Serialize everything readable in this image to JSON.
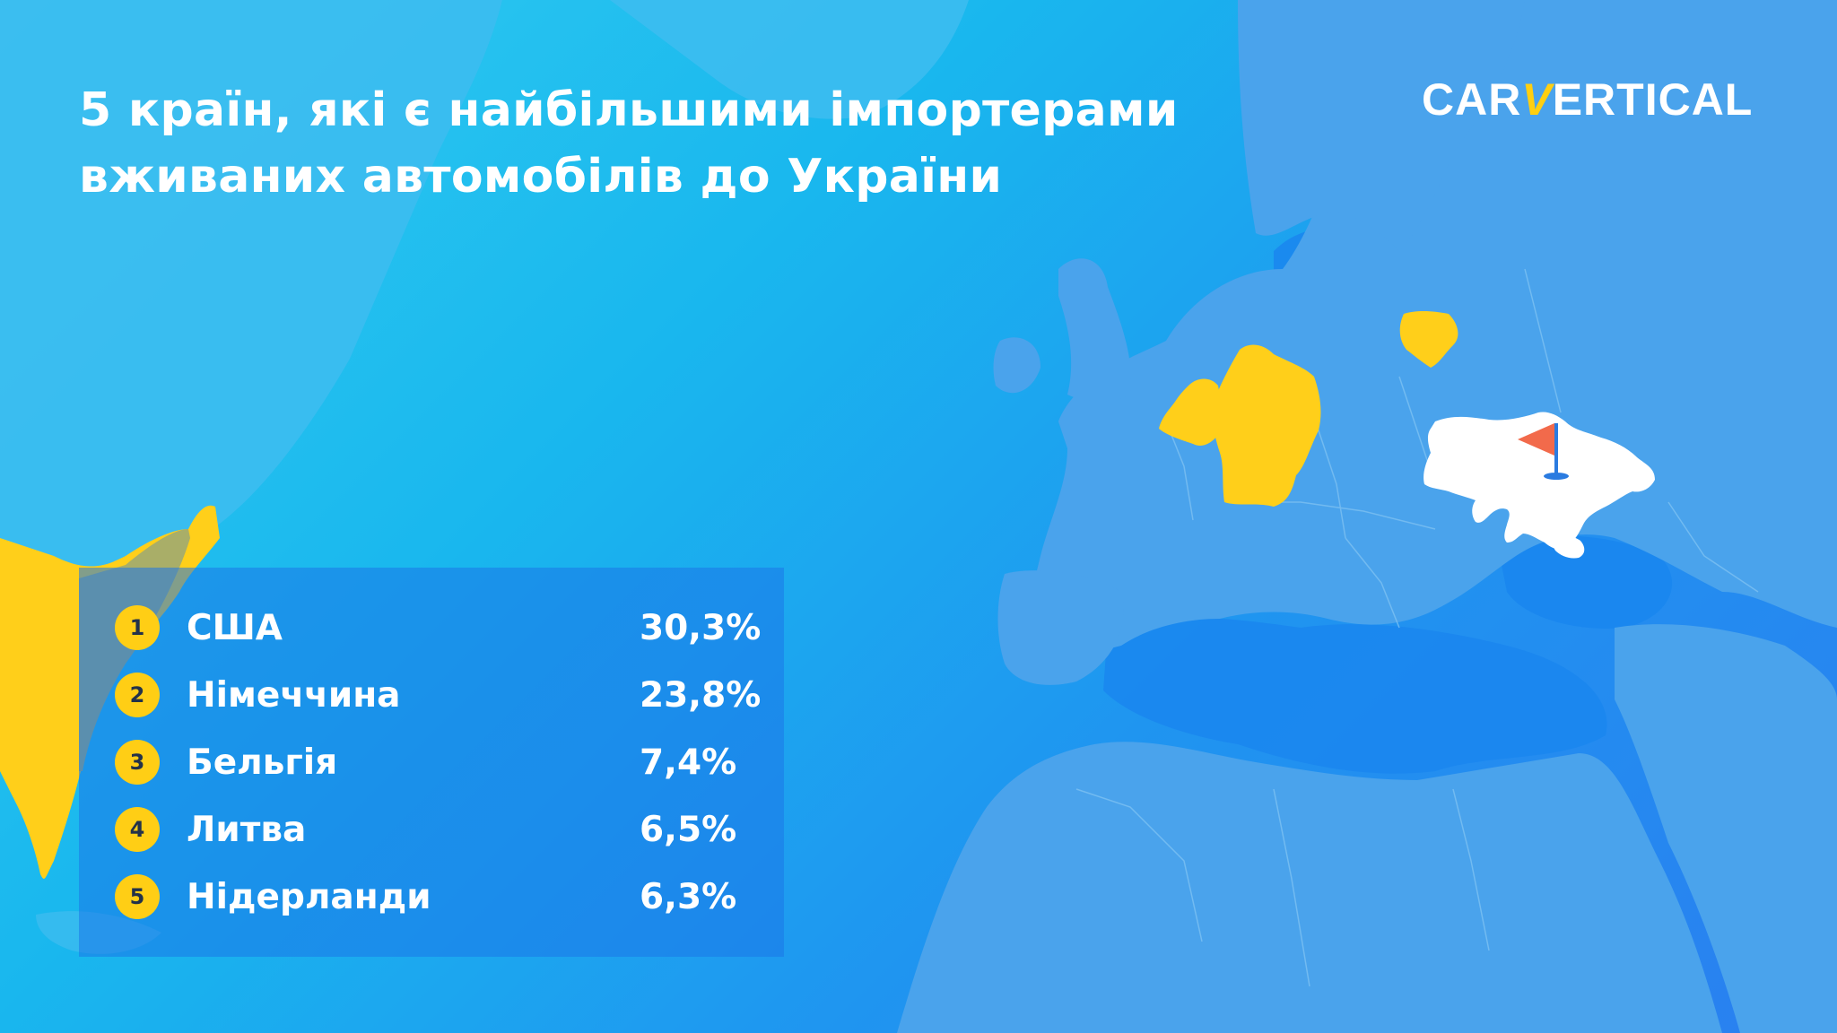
{
  "title": {
    "line1": "5 країн, які є найбільшими імпортерами",
    "line2": "вживаних автомобілів до України"
  },
  "logo": {
    "part1": "CAR",
    "part2": "V",
    "part3": "ERTICAL"
  },
  "ranking": [
    {
      "rank": "1",
      "country": "США",
      "share": "30,3%"
    },
    {
      "rank": "2",
      "country": "Німеччина",
      "share": "23,8%"
    },
    {
      "rank": "3",
      "country": "Бельгія",
      "share": "7,4%"
    },
    {
      "rank": "4",
      "country": "Литва",
      "share": "6,5%"
    },
    {
      "rank": "5",
      "country": "Нідерланди",
      "share": "6,3%"
    }
  ],
  "colors": {
    "highlight": "#ffcf1a",
    "ukraine": "#ffffff",
    "flag": "#f26a4b",
    "land": "#4aa3ec",
    "sea": "#1c8cf0"
  },
  "map_markers": [
    {
      "name": "flag-icon",
      "country": "Ukraine"
    }
  ]
}
